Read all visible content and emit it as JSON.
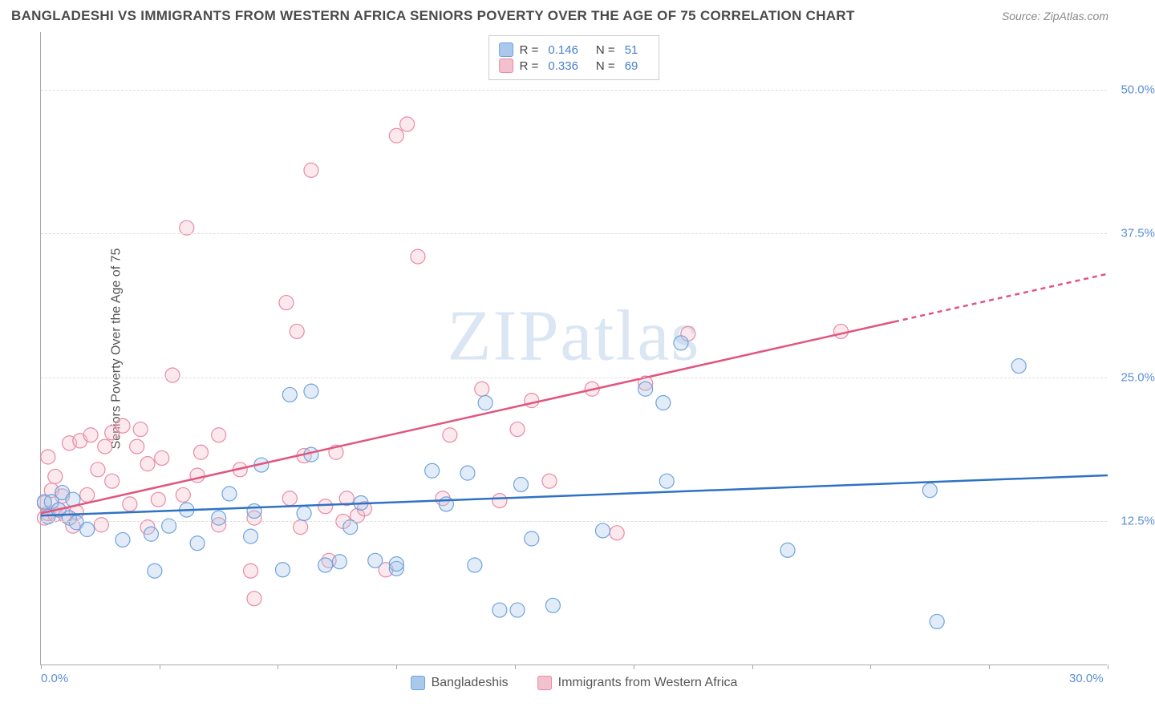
{
  "header": {
    "title": "BANGLADESHI VS IMMIGRANTS FROM WESTERN AFRICA SENIORS POVERTY OVER THE AGE OF 75 CORRELATION CHART",
    "source": "Source: ZipAtlas.com"
  },
  "chart": {
    "type": "scatter-with-regression",
    "ylabel": "Seniors Poverty Over the Age of 75",
    "xlim": [
      0,
      30
    ],
    "ylim": [
      0,
      55
    ],
    "xtick_positions": [
      0,
      3.33,
      6.66,
      10,
      13.33,
      16.66,
      20,
      23.33,
      26.66,
      30
    ],
    "xtick_labels_shown": {
      "0": "0.0%",
      "30": "30.0%"
    },
    "ytick_positions": [
      12.5,
      25.0,
      37.5,
      50.0
    ],
    "ytick_labels": [
      "12.5%",
      "25.0%",
      "37.5%",
      "50.0%"
    ],
    "background_color": "#ffffff",
    "grid_color": "#dddddd",
    "axis_tick_color": "#5b8fd6",
    "watermark": "ZIPatlas",
    "series": [
      {
        "name": "Bangladeshis",
        "color_fill": "#a9c8ec",
        "color_stroke": "#6fa3dd",
        "line_color": "#2f72c4",
        "marker_radius": 9,
        "R": "0.146",
        "N": "51",
        "regression": {
          "x1": 0,
          "y1": 13.0,
          "x2": 30,
          "y2": 16.5,
          "dash_from_x": null
        },
        "points": [
          [
            0.1,
            14.2
          ],
          [
            0.2,
            12.9
          ],
          [
            0.3,
            14.2
          ],
          [
            0.5,
            13.5
          ],
          [
            0.6,
            15.0
          ],
          [
            0.8,
            12.8
          ],
          [
            0.9,
            14.4
          ],
          [
            1.0,
            12.4
          ],
          [
            1.3,
            11.8
          ],
          [
            2.3,
            10.9
          ],
          [
            3.1,
            11.4
          ],
          [
            3.2,
            8.2
          ],
          [
            3.6,
            12.1
          ],
          [
            4.1,
            13.5
          ],
          [
            4.4,
            10.6
          ],
          [
            5.0,
            12.8
          ],
          [
            5.3,
            14.9
          ],
          [
            5.9,
            11.2
          ],
          [
            6.0,
            13.4
          ],
          [
            6.2,
            17.4
          ],
          [
            6.8,
            8.3
          ],
          [
            7.0,
            23.5
          ],
          [
            7.4,
            13.2
          ],
          [
            7.6,
            23.8
          ],
          [
            7.6,
            18.3
          ],
          [
            8.0,
            8.7
          ],
          [
            8.4,
            9.0
          ],
          [
            8.7,
            12.0
          ],
          [
            9.0,
            14.1
          ],
          [
            9.4,
            9.1
          ],
          [
            10.0,
            8.4
          ],
          [
            10.0,
            8.8
          ],
          [
            11.0,
            16.9
          ],
          [
            11.4,
            14.0
          ],
          [
            12.0,
            16.7
          ],
          [
            12.2,
            8.7
          ],
          [
            12.5,
            22.8
          ],
          [
            12.9,
            4.8
          ],
          [
            13.4,
            4.8
          ],
          [
            13.5,
            15.7
          ],
          [
            13.8,
            11.0
          ],
          [
            14.4,
            5.2
          ],
          [
            15.8,
            11.7
          ],
          [
            17.0,
            24.0
          ],
          [
            17.5,
            22.8
          ],
          [
            17.6,
            16.0
          ],
          [
            18.0,
            28.0
          ],
          [
            21.0,
            10.0
          ],
          [
            25.0,
            15.2
          ],
          [
            25.2,
            3.8
          ],
          [
            27.5,
            26.0
          ]
        ]
      },
      {
        "name": "Immigrants from Western Africa",
        "color_fill": "#f3c1cd",
        "color_stroke": "#e88aa4",
        "line_color": "#e0567e",
        "marker_radius": 9,
        "R": "0.336",
        "N": "69",
        "regression": {
          "x1": 0,
          "y1": 13.2,
          "x2": 30,
          "y2": 34.0,
          "dash_from_x": 24
        },
        "points": [
          [
            0.1,
            12.8
          ],
          [
            0.1,
            14.1
          ],
          [
            0.2,
            13.2
          ],
          [
            0.2,
            18.1
          ],
          [
            0.3,
            15.2
          ],
          [
            0.4,
            13.1
          ],
          [
            0.4,
            16.4
          ],
          [
            0.5,
            13.5
          ],
          [
            0.6,
            14.7
          ],
          [
            0.7,
            13.0
          ],
          [
            0.8,
            19.3
          ],
          [
            0.9,
            12.1
          ],
          [
            1.0,
            13.3
          ],
          [
            1.1,
            19.5
          ],
          [
            1.3,
            14.8
          ],
          [
            1.4,
            20.0
          ],
          [
            1.6,
            17.0
          ],
          [
            1.7,
            12.2
          ],
          [
            1.8,
            19.0
          ],
          [
            2.0,
            16.0
          ],
          [
            2.0,
            20.2
          ],
          [
            2.3,
            20.8
          ],
          [
            2.5,
            14.0
          ],
          [
            2.7,
            19.0
          ],
          [
            2.8,
            20.5
          ],
          [
            3.0,
            12.0
          ],
          [
            3.0,
            17.5
          ],
          [
            3.3,
            14.4
          ],
          [
            3.4,
            18.0
          ],
          [
            3.7,
            25.2
          ],
          [
            4.0,
            14.8
          ],
          [
            4.1,
            38.0
          ],
          [
            4.4,
            16.5
          ],
          [
            4.5,
            18.5
          ],
          [
            5.0,
            12.2
          ],
          [
            5.0,
            20.0
          ],
          [
            5.6,
            17.0
          ],
          [
            5.9,
            8.2
          ],
          [
            6.0,
            12.8
          ],
          [
            6.0,
            5.8
          ],
          [
            6.9,
            31.5
          ],
          [
            7.0,
            14.5
          ],
          [
            7.2,
            29.0
          ],
          [
            7.3,
            12.0
          ],
          [
            7.4,
            18.2
          ],
          [
            7.6,
            43.0
          ],
          [
            8.0,
            13.8
          ],
          [
            8.1,
            9.1
          ],
          [
            8.3,
            18.5
          ],
          [
            8.5,
            12.5
          ],
          [
            8.6,
            14.5
          ],
          [
            8.9,
            13.0
          ],
          [
            9.1,
            13.6
          ],
          [
            9.7,
            8.3
          ],
          [
            10.0,
            46.0
          ],
          [
            10.3,
            47.0
          ],
          [
            10.6,
            35.5
          ],
          [
            11.3,
            14.5
          ],
          [
            11.5,
            20.0
          ],
          [
            12.4,
            24.0
          ],
          [
            12.9,
            14.3
          ],
          [
            13.4,
            20.5
          ],
          [
            13.8,
            23.0
          ],
          [
            14.3,
            16.0
          ],
          [
            15.5,
            24.0
          ],
          [
            16.2,
            11.5
          ],
          [
            17.0,
            24.5
          ],
          [
            18.2,
            28.8
          ],
          [
            22.5,
            29.0
          ]
        ]
      }
    ],
    "legend_bottom": [
      {
        "label": "Bangladeshis",
        "fill": "#a9c8ec",
        "stroke": "#6fa3dd"
      },
      {
        "label": "Immigrants from Western Africa",
        "fill": "#f3c1cd",
        "stroke": "#e88aa4"
      }
    ]
  }
}
